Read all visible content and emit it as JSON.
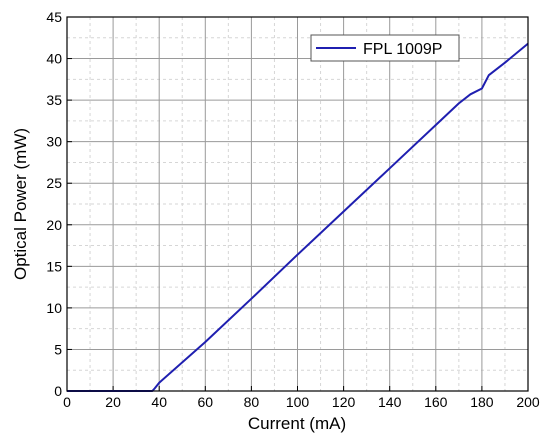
{
  "chart_data": {
    "type": "line",
    "xlabel": "Current (mA)",
    "ylabel": "Optical Power (mW)",
    "xlim": [
      0,
      200
    ],
    "ylim": [
      0,
      45
    ],
    "x_ticks": [
      0,
      20,
      40,
      60,
      80,
      100,
      120,
      140,
      160,
      180,
      200
    ],
    "y_ticks": [
      0,
      5,
      10,
      15,
      20,
      25,
      30,
      35,
      40,
      45
    ],
    "grid": {
      "major": true,
      "minor": true
    },
    "legend": {
      "position": "top-right"
    },
    "series": [
      {
        "name": "FPL 1009P",
        "color": "#1f1fb0",
        "x": [
          0,
          37,
          38,
          40,
          60,
          80,
          100,
          120,
          140,
          160,
          170,
          175,
          180,
          183,
          190,
          200
        ],
        "y": [
          0,
          0,
          0.3,
          1.0,
          5.9,
          11.1,
          16.4,
          21.6,
          26.8,
          32.0,
          34.6,
          35.7,
          36.4,
          38.0,
          39.5,
          41.8
        ]
      }
    ]
  }
}
